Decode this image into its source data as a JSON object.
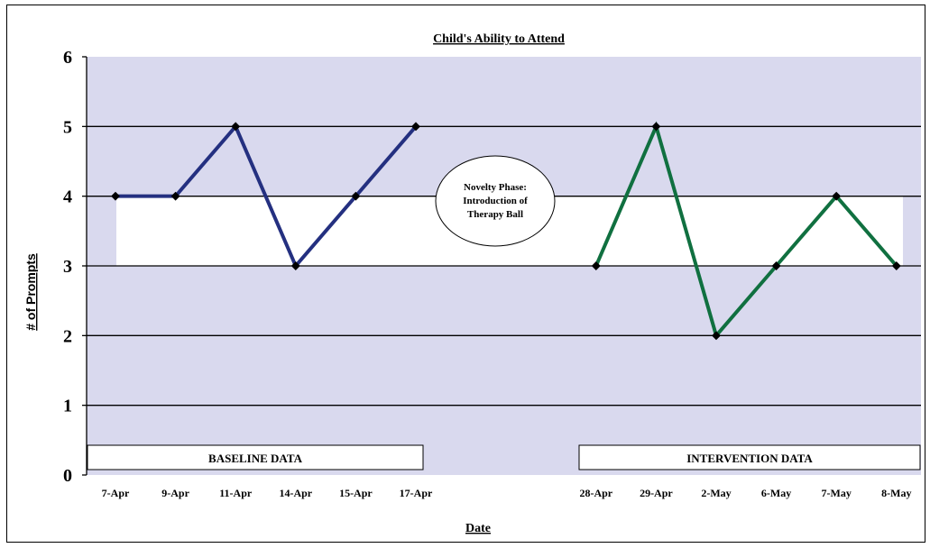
{
  "chart_data": {
    "type": "line",
    "title": "Child's Ability to Attend",
    "xlabel": "Date",
    "ylabel": "# of Prompts",
    "ylim": [
      0,
      6
    ],
    "yticks": [
      0,
      1,
      2,
      3,
      4,
      5,
      6
    ],
    "grid": true,
    "categories": [
      "7-Apr",
      "9-Apr",
      "11-Apr",
      "14-Apr",
      "15-Apr",
      "17-Apr",
      "",
      "",
      "28-Apr",
      "29-Apr",
      "2-May",
      "6-May",
      "7-May",
      "8-May"
    ],
    "series": [
      {
        "phase": "baseline",
        "color": "#243080",
        "values": [
          4,
          4,
          5,
          3,
          4,
          5,
          null,
          null,
          null,
          null,
          null,
          null,
          null,
          null
        ]
      },
      {
        "phase": "intervention",
        "color": "#107040",
        "values": [
          null,
          null,
          null,
          null,
          null,
          null,
          null,
          null,
          3,
          5,
          2,
          3,
          4,
          3
        ]
      }
    ],
    "phase_labels": [
      "BASELINE DATA",
      "INTERVENTION DATA"
    ],
    "annotation": "Novelty Phase: Introduction of Therapy Ball",
    "plot_color": "#d9d9ee",
    "band_color": "#ffffff"
  }
}
